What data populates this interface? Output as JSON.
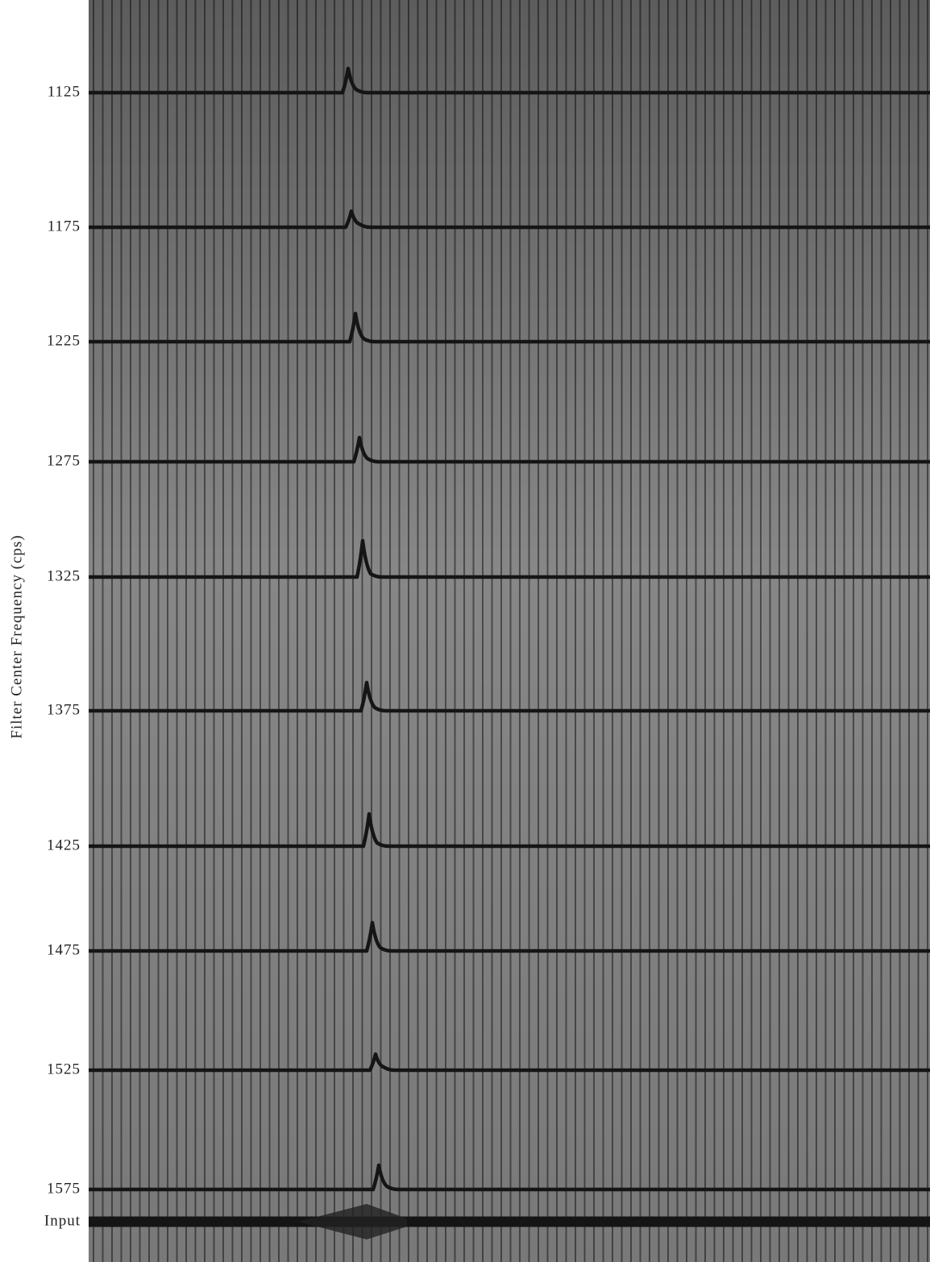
{
  "axis_label": "Filter Center Frequency (cps)",
  "rows": [
    {
      "label": "1125"
    },
    {
      "label": "1175"
    },
    {
      "label": "1225"
    },
    {
      "label": "1275"
    },
    {
      "label": "1325"
    },
    {
      "label": "1375"
    },
    {
      "label": "1425"
    },
    {
      "label": "1475"
    },
    {
      "label": "1525"
    },
    {
      "label": "1575"
    },
    {
      "label": "Input"
    }
  ]
}
